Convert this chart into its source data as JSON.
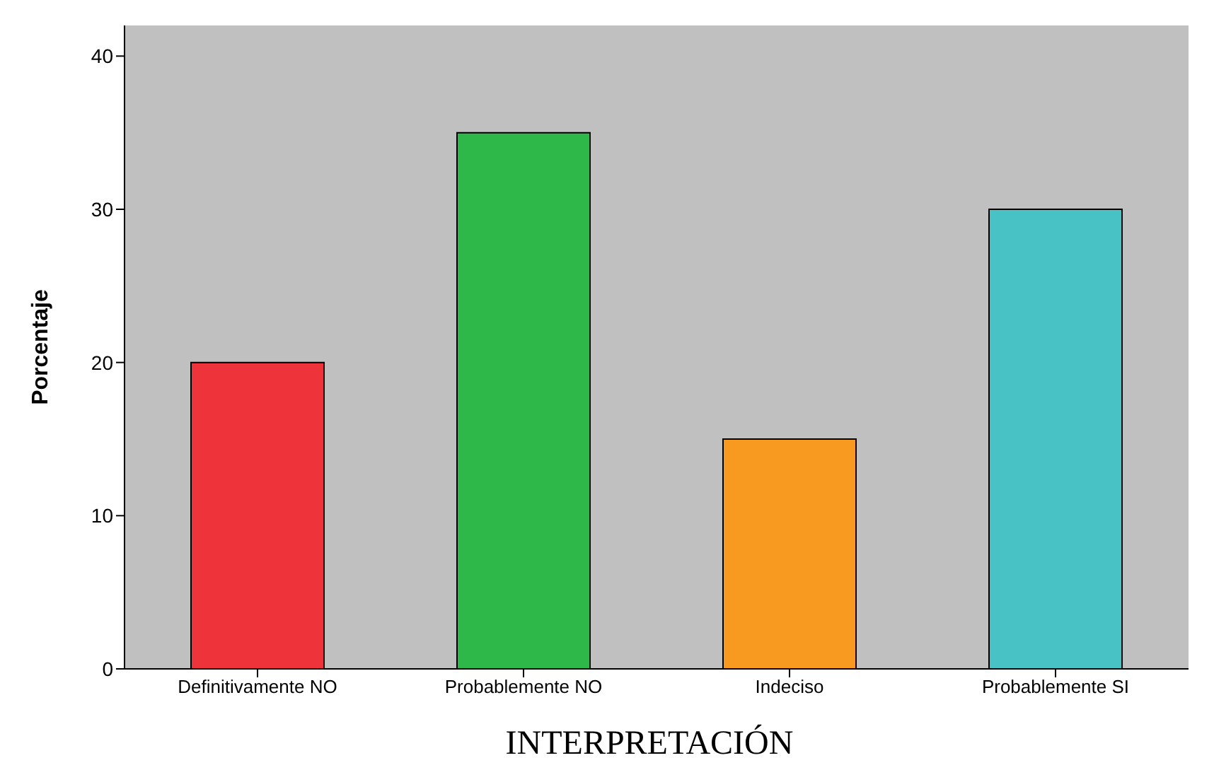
{
  "chart_data": {
    "type": "bar",
    "ylabel": "Porcentaje",
    "categories": [
      "Definitivamente NO",
      "Probablemente NO",
      "Indeciso",
      "Probablemente SI"
    ],
    "values": [
      20,
      35,
      15,
      30
    ],
    "colors": [
      "#ef333a",
      "#2fb84a",
      "#f79a1f",
      "#48c2c5"
    ],
    "ylim": [
      0,
      42
    ],
    "yticks": [
      0,
      10,
      20,
      30,
      40
    ],
    "grid": false,
    "annotations": [
      "INTERPRETACIÓN"
    ]
  }
}
